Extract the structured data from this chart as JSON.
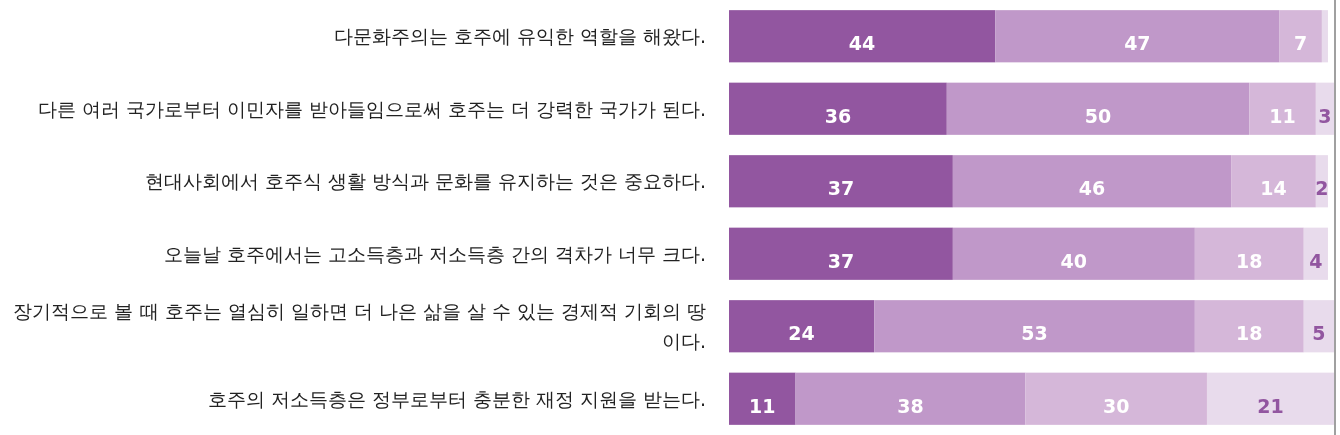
{
  "chart_data": {
    "type": "bar",
    "orientation": "horizontal",
    "stacked": true,
    "categories": [
      "다문화주의는 호주에 유익한 역할을 해왔다.",
      "다른 여러 국가로부터 이민자를 받아들임으로써 호주는 더 강력한 국가가 된다.",
      "현대사회에서 호주식 생활 방식과 문화를 유지하는 것은 중요하다.",
      "오늘날 호주에서는 고소득층과 저소득층 간의 격차가 너무 크다.",
      "장기적으로 볼 때 호주는 열심히 일하면 더 나은 삶을 살 수 있는 경제적 기회의 땅이다.",
      "호주의 저소득층은 정부로부터 충분한 재정 지원을 받는다."
    ],
    "series": [
      {
        "color": "#9256a0",
        "values": [
          44,
          36,
          37,
          37,
          24,
          11
        ],
        "value_labels": [
          "44",
          "36",
          "37",
          "37",
          "24",
          "11"
        ]
      },
      {
        "color": "#c098c9",
        "values": [
          47,
          50,
          46,
          40,
          53,
          38
        ],
        "value_labels": [
          "47",
          "50",
          "46",
          "40",
          "53",
          "38"
        ]
      },
      {
        "color": "#d5b7d9",
        "values": [
          7,
          11,
          14,
          18,
          18,
          30
        ],
        "value_labels": [
          "7",
          "11",
          "14",
          "18",
          "18",
          "30"
        ]
      },
      {
        "color": "#e8dbec",
        "values": [
          1,
          3,
          2,
          4,
          5,
          21
        ],
        "value_labels": [
          null,
          "3",
          "2",
          "4",
          "5",
          "21"
        ]
      }
    ]
  }
}
